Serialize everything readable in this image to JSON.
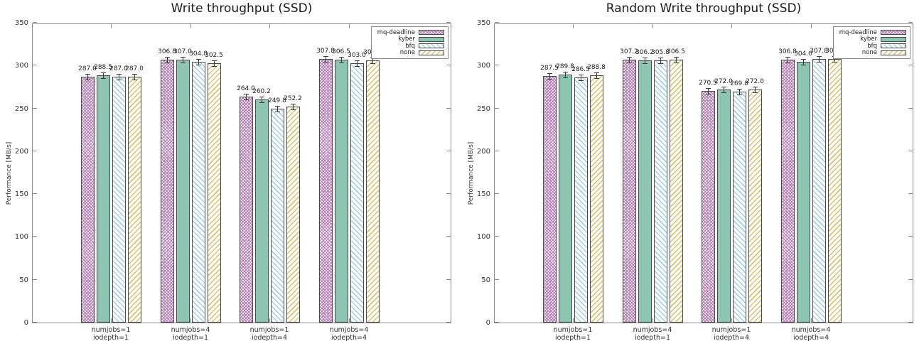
{
  "chart_data": [
    {
      "type": "bar",
      "title": "Write throughput (SSD)",
      "ylabel": "Performance [MB/s]",
      "ylim": [
        0,
        350
      ],
      "ytick_step": 50,
      "grid": false,
      "legend_position": "top-right-inside-box",
      "categories": [
        "numjobs=1\niodepth=1",
        "numjobs=4\niodepth=1",
        "numjobs=1\niodepth=4",
        "numjobs=4\niodepth=4"
      ],
      "series": [
        {
          "name": "mq-deadline",
          "values": [
            287.0,
            306.8,
            264.0,
            307.8
          ]
        },
        {
          "name": "kyber",
          "values": [
            288.5,
            307.0,
            260.2,
            306.5
          ]
        },
        {
          "name": "bfq",
          "values": [
            287.0,
            304.8,
            249.8,
            303.0
          ]
        },
        {
          "name": "none",
          "values": [
            287.0,
            302.5,
            252.2,
            305.8
          ]
        }
      ]
    },
    {
      "type": "bar",
      "title": "Random Write throughput (SSD)",
      "ylabel": "Performance [MB/s]",
      "ylim": [
        0,
        350
      ],
      "ytick_step": 50,
      "grid": false,
      "legend_position": "top-right-inside-box",
      "categories": [
        "numjobs=1\niodepth=1",
        "numjobs=4\niodepth=1",
        "numjobs=1\niodepth=4",
        "numjobs=4\niodepth=4"
      ],
      "series": [
        {
          "name": "mq-deadline",
          "values": [
            287.5,
            307.2,
            270.5,
            306.8
          ]
        },
        {
          "name": "kyber",
          "values": [
            289.8,
            306.2,
            272.0,
            304.0
          ]
        },
        {
          "name": "bfq",
          "values": [
            286.5,
            305.8,
            269.8,
            307.8
          ]
        },
        {
          "name": "none",
          "values": [
            288.8,
            306.5,
            272.0,
            308.0
          ]
        }
      ]
    }
  ],
  "legend_entries": [
    "mq-deadline",
    "kyber",
    "bfq",
    "none"
  ],
  "series_styles": {
    "mq-deadline": {
      "fill": "#b07ab0",
      "bg": "#f6eaf6",
      "pattern": "checker"
    },
    "kyber": {
      "fill": "#8ec4b2",
      "bg": "#8ec4b2",
      "pattern": "solid"
    },
    "bfq": {
      "fill": "#a9cfe2",
      "bg": "#fdfeff",
      "pattern": "diag-down"
    },
    "none": {
      "fill": "#d6c37e",
      "bg": "#fffef8",
      "pattern": "diag-up"
    }
  },
  "frame_color": "#8a8a8a",
  "error_bar_color": "#3a3a3a",
  "value_label_decimals": 1
}
